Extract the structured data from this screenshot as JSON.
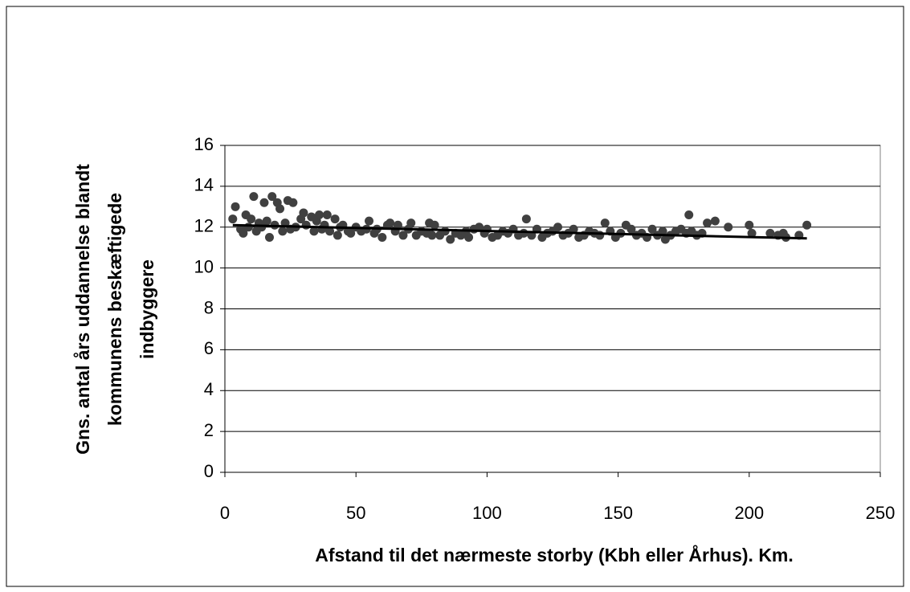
{
  "chart_data": {
    "type": "scatter",
    "xlabel": "Afstand til det nærmeste storby (Kbh eller Århus). Km.",
    "ylabel": [
      "Gns. antal års uddannelse blandt",
      "kommunens beskæftigede",
      "indbyggere"
    ],
    "xlim": [
      0,
      250
    ],
    "xticks": [
      0,
      50,
      100,
      150,
      200,
      250
    ],
    "ylim": [
      0,
      16
    ],
    "yticks": [
      0,
      2,
      4,
      6,
      8,
      10,
      12,
      14,
      16
    ],
    "grid": true,
    "color": "#404040",
    "x": [
      3,
      4,
      6,
      7,
      8,
      9,
      10,
      11,
      12,
      13,
      14,
      15,
      16,
      17,
      18,
      19,
      20,
      21,
      22,
      23,
      24,
      25,
      26,
      27,
      29,
      30,
      31,
      33,
      34,
      35,
      36,
      37,
      38,
      39,
      40,
      42,
      43,
      44,
      45,
      47,
      48,
      50,
      52,
      54,
      55,
      57,
      58,
      60,
      62,
      63,
      65,
      66,
      68,
      70,
      71,
      73,
      75,
      77,
      78,
      79,
      80,
      82,
      84,
      86,
      88,
      90,
      92,
      93,
      95,
      97,
      99,
      100,
      102,
      104,
      106,
      108,
      110,
      112,
      114,
      115,
      117,
      119,
      121,
      123,
      125,
      127,
      129,
      131,
      133,
      135,
      137,
      139,
      141,
      143,
      145,
      147,
      149,
      151,
      153,
      155,
      157,
      159,
      161,
      163,
      165,
      167,
      168,
      170,
      172,
      174,
      176,
      177,
      178,
      180,
      182,
      184,
      187,
      192,
      200,
      201,
      208,
      211,
      213,
      214,
      219,
      222
    ],
    "values": [
      12.4,
      13.0,
      11.9,
      11.7,
      12.6,
      12.0,
      12.4,
      13.5,
      11.8,
      12.2,
      12.0,
      13.2,
      12.3,
      11.5,
      13.5,
      12.1,
      13.2,
      12.9,
      11.8,
      12.2,
      13.3,
      11.9,
      13.2,
      12.0,
      12.4,
      12.7,
      12.1,
      12.5,
      11.8,
      12.3,
      12.6,
      11.9,
      12.1,
      12.6,
      11.8,
      12.4,
      11.6,
      12.0,
      12.1,
      11.8,
      11.7,
      12.0,
      11.8,
      11.9,
      12.3,
      11.7,
      11.9,
      11.5,
      12.1,
      12.2,
      11.8,
      12.1,
      11.6,
      11.9,
      12.2,
      11.6,
      11.8,
      11.7,
      12.2,
      11.6,
      12.1,
      11.6,
      11.8,
      11.4,
      11.7,
      11.6,
      11.8,
      11.5,
      11.9,
      12.0,
      11.7,
      11.9,
      11.5,
      11.6,
      11.8,
      11.7,
      11.9,
      11.6,
      11.7,
      12.4,
      11.6,
      11.9,
      11.5,
      11.7,
      11.8,
      12.0,
      11.6,
      11.7,
      11.9,
      11.5,
      11.6,
      11.8,
      11.7,
      11.6,
      12.2,
      11.8,
      11.5,
      11.7,
      12.1,
      11.9,
      11.6,
      11.7,
      11.5,
      11.9,
      11.6,
      11.8,
      11.4,
      11.6,
      11.8,
      11.9,
      11.7,
      12.6,
      11.8,
      11.6,
      11.7,
      12.2,
      12.3,
      12.0,
      12.1,
      11.7,
      11.7,
      11.6,
      11.7,
      11.5,
      11.6,
      12.1
    ],
    "trend": {
      "x": [
        3,
        222
      ],
      "values": [
        12.1,
        11.45
      ]
    }
  }
}
